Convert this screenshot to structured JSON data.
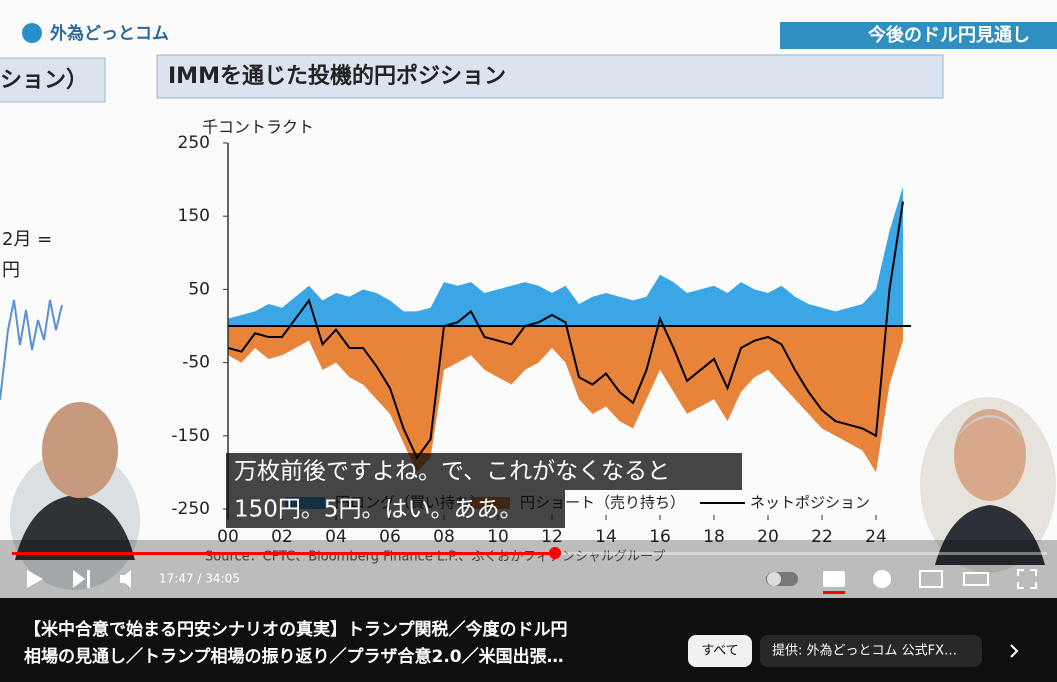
{
  "header": {
    "logo": "外為どっとコム",
    "section": "今後のドル円見通し",
    "slide_title": "IMMを通じた投機的円ポジション",
    "left_panel_title": "ション）",
    "left_panel_lines": [
      "2月 =",
      "円"
    ]
  },
  "chart_data": {
    "type": "area",
    "y_label": "千コントラクト",
    "source": "Source：CFTC、Bloomberg Finance L.P.、ふくおかフィナンシャルグループ",
    "x": [
      2000,
      2000.5,
      2001,
      2001.5,
      2002,
      2002.5,
      2003,
      2003.5,
      2004,
      2004.5,
      2005,
      2005.5,
      2006,
      2006.5,
      2007,
      2007.5,
      2008,
      2008.5,
      2009,
      2009.5,
      2010,
      2010.5,
      2011,
      2011.5,
      2012,
      2012.5,
      2013,
      2013.5,
      2014,
      2014.5,
      2015,
      2015.5,
      2016,
      2016.5,
      2017,
      2017.5,
      2018,
      2018.5,
      2019,
      2019.5,
      2020,
      2020.5,
      2021,
      2021.5,
      2022,
      2022.5,
      2023,
      2023.5,
      2024,
      2024.5,
      2025
    ],
    "series": [
      {
        "name": "円ロング（買い持ち）",
        "color": "#3aa6e6",
        "values": [
          10,
          15,
          20,
          30,
          25,
          40,
          55,
          35,
          45,
          40,
          50,
          45,
          35,
          20,
          20,
          25,
          60,
          55,
          60,
          45,
          50,
          55,
          60,
          55,
          45,
          55,
          30,
          40,
          45,
          40,
          35,
          40,
          70,
          60,
          45,
          50,
          55,
          45,
          60,
          50,
          45,
          55,
          40,
          30,
          25,
          20,
          25,
          30,
          50,
          130,
          190
        ]
      },
      {
        "name": "円ショート（売り持ち）",
        "color": "#e8843a",
        "values": [
          -40,
          -50,
          -30,
          -45,
          -40,
          -30,
          -20,
          -60,
          -50,
          -70,
          -80,
          -100,
          -120,
          -160,
          -200,
          -180,
          -60,
          -50,
          -40,
          -60,
          -70,
          -80,
          -60,
          -50,
          -30,
          -50,
          -100,
          -120,
          -110,
          -130,
          -140,
          -100,
          -60,
          -90,
          -120,
          -110,
          -100,
          -130,
          -90,
          -70,
          -60,
          -80,
          -100,
          -120,
          -140,
          -150,
          -160,
          -170,
          -200,
          -80,
          -20
        ]
      },
      {
        "name": "ネットポジション",
        "color": "#000000",
        "line": true,
        "values": [
          -30,
          -35,
          -10,
          -15,
          -15,
          10,
          35,
          -25,
          -5,
          -30,
          -30,
          -55,
          -85,
          -140,
          -180,
          -155,
          0,
          5,
          20,
          -15,
          -20,
          -25,
          0,
          5,
          15,
          5,
          -70,
          -80,
          -65,
          -90,
          -105,
          -60,
          10,
          -30,
          -75,
          -60,
          -45,
          -85,
          -30,
          -20,
          -15,
          -25,
          -60,
          -90,
          -115,
          -130,
          -135,
          -140,
          -150,
          50,
          170
        ]
      }
    ],
    "xlim": [
      2000,
      2025.3
    ],
    "ylim": [
      -250,
      250
    ],
    "yticks": [
      -250,
      -150,
      -50,
      50,
      150,
      250
    ],
    "xticks": [
      {
        "value": 2000,
        "label": "00"
      },
      {
        "value": 2002,
        "label": "02"
      },
      {
        "value": 2004,
        "label": "04"
      },
      {
        "value": 2006,
        "label": "06"
      },
      {
        "value": 2008,
        "label": "08"
      },
      {
        "value": 2010,
        "label": "10"
      },
      {
        "value": 2012,
        "label": "12"
      },
      {
        "value": 2014,
        "label": "14"
      },
      {
        "value": 2016,
        "label": "16"
      },
      {
        "value": 2018,
        "label": "18"
      },
      {
        "value": 2020,
        "label": "20"
      },
      {
        "value": 2022,
        "label": "22"
      },
      {
        "value": 2024,
        "label": "24"
      }
    ]
  },
  "captions": [
    "万枚前後ですよね。で、これがなくなると",
    "150円。5円。はい。ああ。"
  ],
  "player": {
    "time": "17:47 / 34:05"
  },
  "video_title": [
    "【米中合意で始まる円安シナリオの真実】トランプ関税／今度のドル円",
    "相場の見通し／トランプ相場の振り返り／プラザ合意2.0／米国出張…"
  ],
  "chips": [
    "すべて",
    "提供: 外為どっとコム 公式FX…"
  ]
}
